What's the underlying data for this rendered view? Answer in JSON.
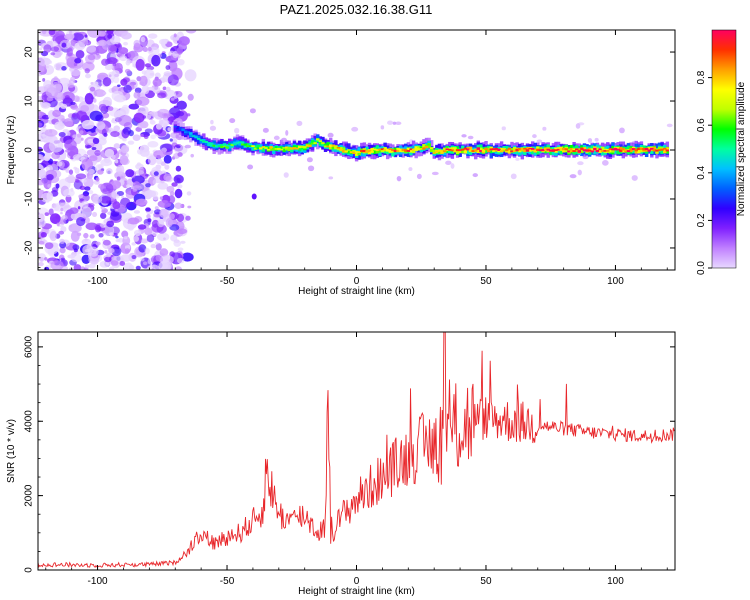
{
  "title": "PAZ1.2025.032.16.38.G11",
  "chart_data": [
    {
      "type": "heatmap",
      "xlabel": "Height of straight line (km)",
      "ylabel": "Frequency (Hz)",
      "xlim": [
        -123,
        123
      ],
      "ylim": [
        -24.5,
        24.5
      ],
      "xticks": [
        -100,
        -50,
        0,
        50,
        100
      ],
      "yticks": [
        -20,
        -10,
        0,
        10,
        20
      ],
      "colorbar": {
        "label": "Normalized spectral amplitude",
        "range": [
          0,
          1
        ],
        "ticks": [
          "0.0",
          "0.2",
          "0.4",
          "0.6",
          "0.8"
        ],
        "colors": [
          "#e8d8ff",
          "#c080ff",
          "#8020ff",
          "#3000ff",
          "#0060ff",
          "#00c0ff",
          "#00ffa0",
          "#00ff00",
          "#c0ff00",
          "#ffff00",
          "#ffa000",
          "#ff3000",
          "#ff0060"
        ]
      },
      "ridge": {
        "description_points_x": [
          -70,
          -65,
          -62,
          -58,
          -55,
          -50,
          -45,
          -40,
          -35,
          -30,
          -25,
          -20,
          -15,
          -12,
          -8,
          -5,
          0,
          5,
          10,
          15,
          20,
          25,
          28,
          30,
          35,
          40,
          50,
          60,
          70,
          80,
          90,
          100,
          110,
          120
        ],
        "frequency_hz": [
          4.5,
          3.5,
          2.5,
          1.5,
          1.0,
          0.8,
          1.5,
          0.5,
          0.3,
          0.2,
          0.3,
          0.5,
          2.0,
          1.0,
          0.5,
          0.0,
          -0.5,
          -0.3,
          0.0,
          -0.2,
          0.0,
          0.3,
          1.0,
          -0.5,
          0.0,
          0.0,
          0.0,
          0.0,
          0.0,
          0.0,
          0.0,
          0.0,
          0.0,
          0.0
        ],
        "amplitude": [
          0.3,
          0.4,
          0.45,
          0.5,
          0.55,
          0.6,
          0.55,
          0.65,
          0.7,
          0.7,
          0.75,
          0.75,
          0.7,
          0.75,
          0.8,
          0.8,
          0.8,
          0.85,
          0.85,
          0.85,
          0.85,
          0.8,
          0.7,
          0.85,
          0.9,
          0.9,
          0.9,
          0.9,
          0.92,
          0.92,
          0.95,
          0.95,
          0.95,
          0.95
        ]
      },
      "noise_region_x": [
        -123,
        -67
      ],
      "noise_level": "low amplitude (~0.0–0.1) scattered across all frequencies"
    },
    {
      "type": "line",
      "xlabel": "Height of straight line (km)",
      "ylabel": "SNR (10 * v/v)",
      "xlim": [
        -123,
        123
      ],
      "ylim": [
        0,
        6400
      ],
      "xticks": [
        -100,
        -50,
        0,
        50,
        100
      ],
      "yticks": [
        0,
        2000,
        4000,
        6000
      ],
      "color": "#e8262a",
      "series": [
        {
          "x": [
            -123,
            -100,
            -80,
            -70,
            -65,
            -62,
            -60,
            -55,
            -50,
            -45,
            -40,
            -36,
            -35,
            -30,
            -25,
            -20,
            -15,
            -12,
            -11,
            -10,
            -8,
            -5,
            0,
            5,
            10,
            15,
            20,
            25,
            30,
            33,
            34,
            35,
            40,
            45,
            50,
            60,
            70,
            80,
            90,
            100,
            110,
            123
          ],
          "y": [
            150,
            130,
            150,
            200,
            500,
            900,
            1000,
            700,
            900,
            1000,
            1300,
            1600,
            2700,
            1500,
            1300,
            1500,
            1000,
            1200,
            5300,
            900,
            1200,
            1500,
            1900,
            2200,
            2500,
            2800,
            3100,
            3300,
            3400,
            3500,
            6400,
            3600,
            3900,
            4000,
            4100,
            4000,
            3900,
            3800,
            3700,
            3650,
            3600,
            3650
          ]
        }
      ]
    }
  ]
}
